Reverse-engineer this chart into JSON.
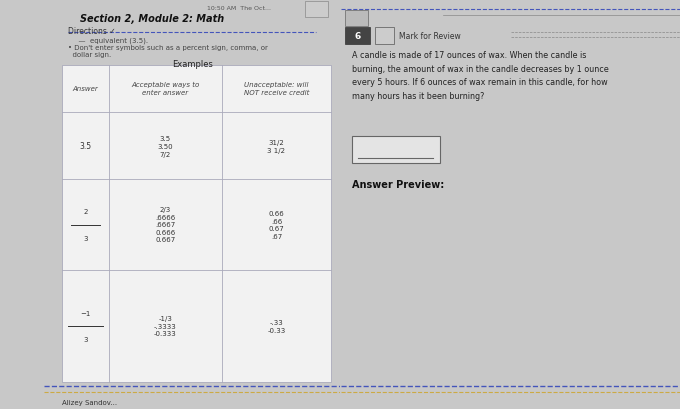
{
  "bg_left_dark": "#1a1a1a",
  "bg_main": "#c8c8c8",
  "left_content_bg": "#e8e8e8",
  "right_content_bg": "#dcdcdc",
  "time_text": "10:50 AM  The Oct...",
  "header_text": "Section 2, Module 2: Math",
  "directions_label": "Directions ✓",
  "directions_line1": "  —  equivalent (3.5).",
  "directions_line2": "• Don't enter symbols such as a percent sign, comma, or",
  "directions_line3": "  dollar sign.",
  "examples_title": "Examples",
  "col0": "Answer",
  "col1": "Acceptable ways to\nenter answer",
  "col2": "Unacceptable: will\nNOT receive credit",
  "row1_ans": "3.5",
  "row1_ok": "3.5\n3.50\n7/2",
  "row1_bad": "31/2\n3 1/2",
  "row2_ok": "2/3\n.6666\n.6667\n0.666\n0.667",
  "row2_bad": "0.66\n.66\n0.67\n.67",
  "row3_ok": "-1/3\n-.3333\n-0.333",
  "row3_bad": "-.33\n-0.33",
  "question_num": "6",
  "mark_review": "Mark for Review",
  "question_text": "A candle is made of 17 ounces of wax. When the candle is\nburning, the amount of wax in the candle decreases by 1 ounce\nevery 5 hours. If 6 ounces of wax remain in this candle, for how\nmany hours has it been burning?",
  "answer_preview": "Answer Preview:",
  "footer": "Alizey Sandov...",
  "divider_blue": "#4455bb",
  "divider_yellow": "#ccaa44",
  "table_border": "#aaaabb",
  "table_fill": "#f2f2f2"
}
